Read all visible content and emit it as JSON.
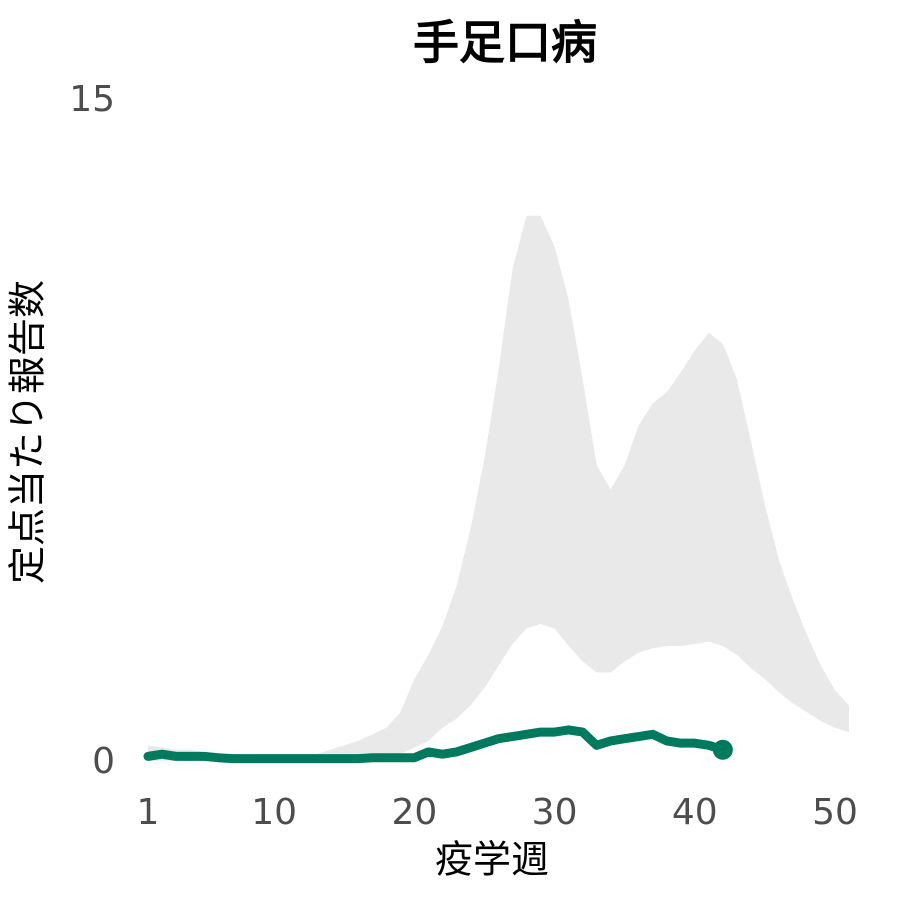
{
  "chart_data": {
    "type": "line",
    "title": "手足口病",
    "x_label": "疫学週",
    "y_label": "定点当たり報告数",
    "x": [
      1,
      2,
      3,
      4,
      5,
      6,
      7,
      8,
      9,
      10,
      11,
      12,
      13,
      14,
      15,
      16,
      17,
      18,
      19,
      20,
      21,
      22,
      23,
      24,
      25,
      26,
      27,
      28,
      29,
      30,
      31,
      32,
      33,
      34,
      35,
      36,
      37,
      38,
      39,
      40,
      41,
      42,
      43,
      44,
      45,
      46,
      47,
      48,
      49,
      50,
      51
    ],
    "values": [
      0.15,
      0.2,
      0.15,
      0.15,
      0.15,
      0.12,
      0.1,
      0.1,
      0.1,
      0.1,
      0.1,
      0.1,
      0.1,
      0.1,
      0.1,
      0.1,
      0.12,
      0.12,
      0.12,
      0.12,
      0.25,
      0.2,
      0.25,
      0.35,
      0.45,
      0.55,
      0.6,
      0.65,
      0.7,
      0.7,
      0.75,
      0.7,
      0.4,
      0.5,
      0.55,
      0.6,
      0.65,
      0.5,
      0.45,
      0.45,
      0.4,
      0.3,
      null,
      null,
      null,
      null,
      null,
      null,
      null,
      null,
      null
    ],
    "color": "#007a5e",
    "band": {
      "color": "#e9e9e9",
      "upper": [
        0.4,
        0.35,
        0.3,
        0.3,
        0.25,
        0.2,
        0.2,
        0.15,
        0.15,
        0.15,
        0.15,
        0.15,
        0.2,
        0.3,
        0.4,
        0.5,
        0.65,
        0.8,
        1.15,
        1.9,
        2.45,
        3.1,
        4.0,
        5.3,
        6.9,
        8.9,
        11.2,
        12.4,
        12.4,
        11.7,
        10.5,
        8.7,
        6.75,
        6.2,
        6.75,
        7.65,
        8.15,
        8.4,
        8.85,
        9.35,
        9.75,
        9.5,
        8.7,
        7.3,
        5.85,
        4.6,
        3.7,
        2.9,
        2.2,
        1.65,
        1.3
      ],
      "lower": [
        0.05,
        0.05,
        0.05,
        0.05,
        0.05,
        0.05,
        0.05,
        0.05,
        0.05,
        0.05,
        0.05,
        0.05,
        0.05,
        0.05,
        0.05,
        0.05,
        0.05,
        0.05,
        0.2,
        0.35,
        0.5,
        0.8,
        1.0,
        1.3,
        1.7,
        2.2,
        2.7,
        3.05,
        3.15,
        3.05,
        2.65,
        2.3,
        2.05,
        2.05,
        2.3,
        2.5,
        2.6,
        2.65,
        2.65,
        2.7,
        2.75,
        2.65,
        2.45,
        2.15,
        1.9,
        1.6,
        1.35,
        1.15,
        0.95,
        0.8,
        0.7
      ]
    },
    "xlim": [
      1,
      50
    ],
    "xticks": [
      1,
      10,
      20,
      30,
      40,
      50
    ],
    "ylim": [
      0,
      15
    ],
    "yticks": [
      0,
      15
    ]
  }
}
